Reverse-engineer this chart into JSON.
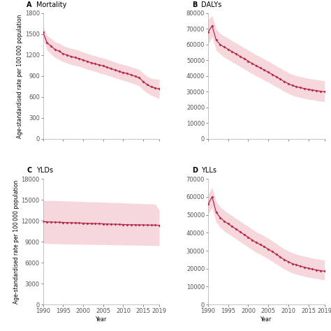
{
  "years": [
    1990,
    1991,
    1992,
    1993,
    1994,
    1995,
    1996,
    1997,
    1998,
    1999,
    2000,
    2001,
    2002,
    2003,
    2004,
    2005,
    2006,
    2007,
    2008,
    2009,
    2010,
    2011,
    2012,
    2013,
    2014,
    2015,
    2016,
    2017,
    2018,
    2019
  ],
  "panels": [
    {
      "label": "A",
      "title": "Mortality",
      "ylim": [
        0,
        1800
      ],
      "yticks": [
        0,
        300,
        600,
        900,
        1200,
        1500,
        1800
      ],
      "mean": [
        1530,
        1375,
        1330,
        1280,
        1255,
        1220,
        1200,
        1180,
        1165,
        1150,
        1130,
        1110,
        1090,
        1075,
        1060,
        1045,
        1025,
        1005,
        985,
        965,
        950,
        935,
        915,
        895,
        875,
        820,
        775,
        745,
        728,
        715
      ],
      "lower": [
        1440,
        1270,
        1215,
        1165,
        1135,
        1105,
        1085,
        1065,
        1050,
        1038,
        1018,
        998,
        980,
        965,
        945,
        930,
        912,
        893,
        873,
        855,
        838,
        822,
        800,
        780,
        758,
        700,
        658,
        622,
        600,
        575
      ],
      "upper": [
        1615,
        1475,
        1440,
        1390,
        1370,
        1335,
        1315,
        1298,
        1282,
        1265,
        1245,
        1225,
        1205,
        1190,
        1172,
        1158,
        1140,
        1120,
        1100,
        1080,
        1065,
        1052,
        1030,
        1013,
        993,
        940,
        895,
        867,
        855,
        855
      ]
    },
    {
      "label": "B",
      "title": "DALYs",
      "ylim": [
        0,
        80000
      ],
      "yticks": [
        0,
        10000,
        20000,
        30000,
        40000,
        50000,
        60000,
        70000,
        80000
      ],
      "mean": [
        68000,
        72000,
        63000,
        60000,
        58500,
        57000,
        55500,
        54000,
        52500,
        51000,
        49500,
        48000,
        46500,
        45200,
        43800,
        42500,
        41000,
        39500,
        38000,
        36500,
        35200,
        34000,
        33200,
        32600,
        32000,
        31500,
        31100,
        30700,
        30300,
        30000
      ],
      "lower": [
        60000,
        65000,
        56500,
        54000,
        52000,
        50500,
        49000,
        47500,
        46000,
        44500,
        43000,
        41500,
        40000,
        38800,
        37400,
        36100,
        34600,
        33200,
        31700,
        30200,
        28900,
        27700,
        26900,
        26300,
        25700,
        25200,
        24800,
        24400,
        24000,
        23700
      ],
      "upper": [
        76000,
        78500,
        70000,
        67000,
        65500,
        64000,
        62500,
        61000,
        59500,
        58000,
        56500,
        55000,
        53500,
        52200,
        50800,
        49500,
        48000,
        46500,
        45000,
        43500,
        42200,
        41000,
        40200,
        39600,
        39000,
        38500,
        38100,
        37700,
        37300,
        37000
      ]
    },
    {
      "label": "C",
      "title": "YLDs",
      "ylim": [
        0,
        18000
      ],
      "yticks": [
        0,
        3000,
        6000,
        9000,
        12000,
        15000,
        18000
      ],
      "mean": [
        11900,
        11860,
        11830,
        11810,
        11790,
        11770,
        11750,
        11730,
        11710,
        11690,
        11670,
        11650,
        11630,
        11610,
        11590,
        11570,
        11550,
        11530,
        11510,
        11490,
        11470,
        11450,
        11440,
        11430,
        11420,
        11410,
        11400,
        11390,
        11380,
        11360
      ],
      "lower": [
        8800,
        8750,
        8720,
        8700,
        8690,
        8680,
        8670,
        8660,
        8650,
        8640,
        8630,
        8620,
        8610,
        8600,
        8590,
        8580,
        8570,
        8560,
        8550,
        8540,
        8530,
        8520,
        8510,
        8500,
        8490,
        8480,
        8470,
        8460,
        8450,
        8440
      ],
      "upper": [
        14900,
        14900,
        14900,
        14900,
        14880,
        14860,
        14840,
        14820,
        14800,
        14780,
        14760,
        14740,
        14720,
        14700,
        14680,
        14660,
        14640,
        14620,
        14600,
        14580,
        14560,
        14540,
        14520,
        14500,
        14480,
        14460,
        14440,
        14420,
        14400,
        13500
      ]
    },
    {
      "label": "D",
      "title": "YLLs",
      "ylim": [
        0,
        70000
      ],
      "yticks": [
        0,
        10000,
        20000,
        30000,
        40000,
        50000,
        60000,
        70000
      ],
      "mean": [
        56000,
        60000,
        51500,
        48500,
        46500,
        45000,
        43500,
        42000,
        40500,
        39000,
        37500,
        36000,
        34500,
        33500,
        32200,
        30900,
        29500,
        28000,
        26500,
        25000,
        23900,
        22800,
        22100,
        21400,
        20800,
        20200,
        19700,
        19300,
        18900,
        18600
      ],
      "lower": [
        50500,
        54000,
        46000,
        43000,
        41000,
        39500,
        38000,
        36500,
        35000,
        33500,
        32000,
        30500,
        29000,
        28000,
        26700,
        25400,
        24000,
        22600,
        21100,
        19700,
        18600,
        17600,
        16900,
        16300,
        15700,
        15200,
        14800,
        14400,
        14000,
        13700
      ],
      "upper": [
        61500,
        65500,
        57500,
        54500,
        52500,
        51000,
        49500,
        48000,
        46500,
        45000,
        43500,
        42000,
        40500,
        39500,
        38200,
        36900,
        35500,
        34000,
        32500,
        31000,
        29900,
        28900,
        28100,
        27500,
        26900,
        26400,
        25900,
        25500,
        25100,
        24700
      ]
    }
  ],
  "line_color": "#b5294e",
  "fill_color": "#f0b8c0",
  "marker": "D",
  "markersize": 2.0,
  "linewidth": 0.9,
  "fill_alpha": 0.55,
  "xlabel": "Year",
  "ylabel": "Age-standardised rate per 100 000 population",
  "xticks": [
    1990,
    1995,
    2000,
    2005,
    2010,
    2015,
    2019
  ],
  "background_color": "#ffffff",
  "title_fontsize": 7,
  "tick_fontsize": 6,
  "axis_label_fontsize": 5.5
}
